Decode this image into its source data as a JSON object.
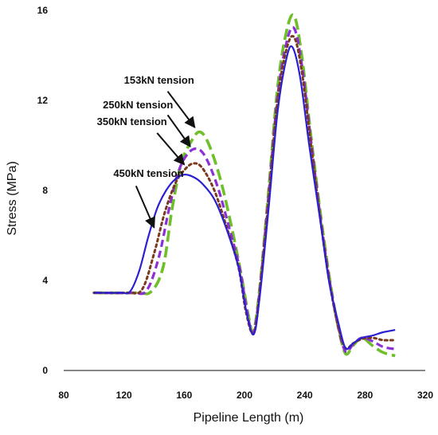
{
  "chart_data": {
    "type": "line",
    "title": "",
    "xlabel": "Pipeline Length (m)",
    "ylabel": "Stress (MPa)",
    "xlim": [
      80,
      320
    ],
    "ylim": [
      0,
      16
    ],
    "xticks": [
      80,
      120,
      160,
      200,
      240,
      280,
      320
    ],
    "yticks": [
      0,
      4,
      8,
      12,
      16
    ],
    "grid": false,
    "colors": {
      "t153": "#6fbf2a",
      "t250": "#8b2fd6",
      "t350": "#7a3a1e",
      "t450": "#2b1fd2",
      "arrow": "#111111"
    },
    "series": [
      {
        "key": "t153",
        "dash": "long-dash",
        "points": [
          [
            100,
            3.45
          ],
          [
            128,
            3.45
          ],
          [
            138,
            3.5
          ],
          [
            146,
            4.6
          ],
          [
            152,
            7.2
          ],
          [
            158,
            9.2
          ],
          [
            164,
            10.1
          ],
          [
            170,
            10.6
          ],
          [
            176,
            10.1
          ],
          [
            184,
            8.5
          ],
          [
            192,
            6.2
          ],
          [
            198,
            4.2
          ],
          [
            203,
            2.3
          ],
          [
            206,
            1.75
          ],
          [
            210,
            3.6
          ],
          [
            216,
            8.0
          ],
          [
            222,
            12.6
          ],
          [
            228,
            15.1
          ],
          [
            233,
            15.75
          ],
          [
            238,
            14.0
          ],
          [
            244,
            10.5
          ],
          [
            250,
            7.2
          ],
          [
            256,
            4.3
          ],
          [
            262,
            2.0
          ],
          [
            267,
            0.75
          ],
          [
            272,
            1.1
          ],
          [
            278,
            1.45
          ],
          [
            285,
            1.1
          ],
          [
            292,
            0.8
          ],
          [
            300,
            0.65
          ]
        ]
      },
      {
        "key": "t250",
        "dash": "medium-dash",
        "points": [
          [
            100,
            3.45
          ],
          [
            125,
            3.45
          ],
          [
            135,
            3.55
          ],
          [
            143,
            5.0
          ],
          [
            150,
            7.2
          ],
          [
            156,
            8.8
          ],
          [
            162,
            9.6
          ],
          [
            168,
            9.85
          ],
          [
            174,
            9.5
          ],
          [
            182,
            8.2
          ],
          [
            190,
            6.3
          ],
          [
            197,
            4.5
          ],
          [
            202,
            2.5
          ],
          [
            206,
            1.7
          ],
          [
            210,
            3.5
          ],
          [
            216,
            7.8
          ],
          [
            222,
            12.2
          ],
          [
            228,
            14.6
          ],
          [
            233,
            15.2
          ],
          [
            238,
            13.6
          ],
          [
            244,
            10.3
          ],
          [
            250,
            7.0
          ],
          [
            256,
            4.2
          ],
          [
            262,
            2.0
          ],
          [
            267,
            0.85
          ],
          [
            272,
            1.15
          ],
          [
            278,
            1.45
          ],
          [
            285,
            1.3
          ],
          [
            292,
            1.05
          ],
          [
            300,
            0.95
          ]
        ]
      },
      {
        "key": "t350",
        "dash": "dots",
        "points": [
          [
            100,
            3.45
          ],
          [
            122,
            3.45
          ],
          [
            132,
            3.6
          ],
          [
            140,
            5.2
          ],
          [
            147,
            7.0
          ],
          [
            154,
            8.3
          ],
          [
            160,
            8.9
          ],
          [
            166,
            9.2
          ],
          [
            172,
            9.0
          ],
          [
            180,
            8.0
          ],
          [
            188,
            6.4
          ],
          [
            196,
            4.6
          ],
          [
            201,
            2.6
          ],
          [
            206,
            1.65
          ],
          [
            210,
            3.4
          ],
          [
            216,
            7.6
          ],
          [
            222,
            12.0
          ],
          [
            228,
            14.3
          ],
          [
            233,
            14.8
          ],
          [
            238,
            13.3
          ],
          [
            244,
            10.1
          ],
          [
            250,
            6.9
          ],
          [
            256,
            4.1
          ],
          [
            262,
            2.0
          ],
          [
            267,
            1.0
          ],
          [
            272,
            1.2
          ],
          [
            278,
            1.4
          ],
          [
            285,
            1.45
          ],
          [
            292,
            1.35
          ],
          [
            300,
            1.35
          ]
        ]
      },
      {
        "key": "t450",
        "dash": "solid",
        "points": [
          [
            100,
            3.45
          ],
          [
            118,
            3.45
          ],
          [
            124,
            3.5
          ],
          [
            130,
            4.4
          ],
          [
            136,
            5.9
          ],
          [
            142,
            7.2
          ],
          [
            148,
            8.0
          ],
          [
            154,
            8.5
          ],
          [
            160,
            8.7
          ],
          [
            166,
            8.6
          ],
          [
            172,
            8.3
          ],
          [
            180,
            7.6
          ],
          [
            188,
            6.3
          ],
          [
            196,
            4.6
          ],
          [
            201,
            2.7
          ],
          [
            206,
            1.6
          ],
          [
            210,
            3.2
          ],
          [
            216,
            7.2
          ],
          [
            222,
            11.5
          ],
          [
            228,
            13.9
          ],
          [
            232,
            14.35
          ],
          [
            237,
            13.0
          ],
          [
            243,
            10.0
          ],
          [
            250,
            6.8
          ],
          [
            256,
            4.0
          ],
          [
            262,
            2.2
          ],
          [
            267,
            1.0
          ],
          [
            272,
            1.2
          ],
          [
            278,
            1.45
          ],
          [
            285,
            1.55
          ],
          [
            292,
            1.7
          ],
          [
            300,
            1.8
          ]
        ]
      }
    ],
    "annotations": [
      {
        "key": "a153",
        "text": "153kN tension",
        "label_x": 120,
        "label_y": 12.75,
        "tip": [
          167,
          10.8
        ],
        "anchor": "start",
        "tail": [
          149,
          12.4
        ]
      },
      {
        "key": "a250",
        "text": "250kN tension",
        "label_x": 106,
        "label_y": 11.65,
        "tip": [
          164,
          9.95
        ],
        "anchor": "start",
        "tail": [
          149,
          11.35
        ]
      },
      {
        "key": "a350",
        "text": "350kN tension",
        "label_x": 102,
        "label_y": 10.9,
        "tip": [
          160,
          9.15
        ],
        "anchor": "start",
        "tail": [
          142,
          10.55
        ]
      },
      {
        "key": "a450",
        "text": "450kN tension",
        "label_x": 113,
        "label_y": 8.6,
        "tip": [
          140,
          6.35
        ],
        "anchor": "start",
        "tail": [
          128,
          8.2
        ]
      }
    ]
  }
}
